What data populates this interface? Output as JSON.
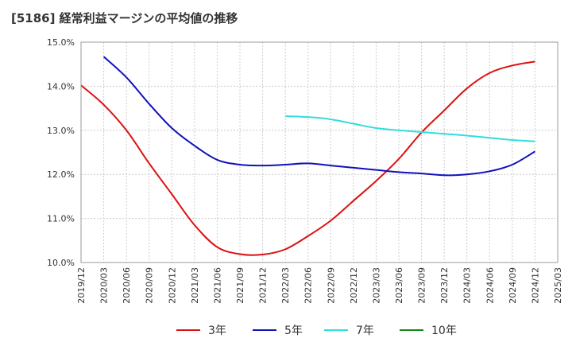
{
  "chart_data": {
    "type": "line",
    "title": "[5186]  経常利益マージンの平均値の推移",
    "xlabel": "",
    "ylabel": "",
    "ylim": [
      10.0,
      15.0
    ],
    "yticks": [
      "10.0%",
      "11.0%",
      "12.0%",
      "13.0%",
      "14.0%",
      "15.0%"
    ],
    "x": [
      "2019/12",
      "2020/03",
      "2020/06",
      "2020/09",
      "2020/12",
      "2021/03",
      "2021/06",
      "2021/09",
      "2021/12",
      "2022/03",
      "2022/06",
      "2022/09",
      "2022/12",
      "2023/03",
      "2023/06",
      "2023/09",
      "2023/12",
      "2024/03",
      "2024/06",
      "2024/09",
      "2024/12",
      "2025/03"
    ],
    "grid": true,
    "legend_position": "bottom",
    "series": [
      {
        "name": "3年",
        "color": "#dd1111",
        "values": [
          14.02,
          13.58,
          13.0,
          12.25,
          11.55,
          10.85,
          10.35,
          10.19,
          10.18,
          10.3,
          10.6,
          10.95,
          11.4,
          11.85,
          12.35,
          12.95,
          13.45,
          13.95,
          14.3,
          14.47,
          14.56,
          null
        ]
      },
      {
        "name": "5年",
        "color": "#1111bb",
        "values": [
          null,
          14.67,
          14.2,
          13.6,
          13.05,
          12.65,
          12.33,
          12.22,
          12.2,
          12.22,
          12.25,
          12.2,
          12.15,
          12.1,
          12.05,
          12.02,
          11.98,
          12.0,
          12.07,
          12.22,
          12.52,
          null
        ]
      },
      {
        "name": "7年",
        "color": "#33dddd",
        "values": [
          null,
          null,
          null,
          null,
          null,
          null,
          null,
          null,
          null,
          13.32,
          13.3,
          13.25,
          13.15,
          13.05,
          13.0,
          12.96,
          12.92,
          12.88,
          12.83,
          12.78,
          12.75,
          null
        ]
      },
      {
        "name": "10年",
        "color": "#118811",
        "values": [
          null,
          null,
          null,
          null,
          null,
          null,
          null,
          null,
          null,
          null,
          null,
          null,
          null,
          null,
          null,
          null,
          null,
          null,
          null,
          null,
          null,
          null
        ]
      }
    ]
  }
}
